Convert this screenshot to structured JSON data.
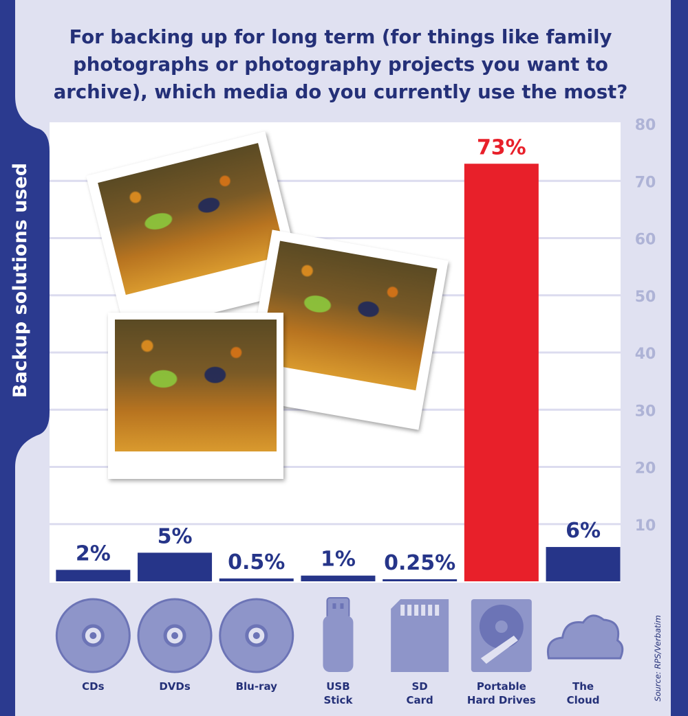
{
  "chart_data": {
    "type": "bar",
    "title": "For backing up for long term (for things like family photographs or photography projects you want to archive), which media do you currently use the most?",
    "ylabel": "Backup solutions used",
    "categories": [
      "CDs",
      "DVDs",
      "Blu-ray",
      "USB Stick",
      "SD Card",
      "Portable Hard Drives",
      "The Cloud"
    ],
    "category_lines": [
      [
        "CDs"
      ],
      [
        "DVDs"
      ],
      [
        "Blu-ray"
      ],
      [
        "USB",
        "Stick"
      ],
      [
        "SD",
        "Card"
      ],
      [
        "Portable",
        "Hard Drives"
      ],
      [
        "The",
        "Cloud"
      ]
    ],
    "values": [
      2,
      5,
      0.5,
      1,
      0.25,
      73,
      6
    ],
    "value_labels": [
      "2%",
      "5%",
      "0.5%",
      "1%",
      "0.25%",
      "73%",
      "6%"
    ],
    "highlight_index": 5,
    "yticks": [
      10,
      20,
      30,
      40,
      50,
      60,
      70,
      80
    ],
    "ylim": [
      0,
      80
    ],
    "source": "Source: RPS/Verbatim",
    "icons": [
      "cd-icon",
      "dvd-icon",
      "blu-ray-icon",
      "usb-stick-icon",
      "sd-card-icon",
      "hard-drive-icon",
      "cloud-icon"
    ],
    "colors": {
      "bar": "#263589",
      "highlight_bar": "#e8202a",
      "highlight_label": "#e8202a",
      "label": "#243078",
      "tick": "#aeb3d6",
      "grid": "#dcdcef",
      "panel": "#ffffff",
      "band": "#e0e1f1",
      "frame": "#2b3a8f",
      "icon": "#8e95c9",
      "icon_stroke": "#6c74b6"
    }
  }
}
